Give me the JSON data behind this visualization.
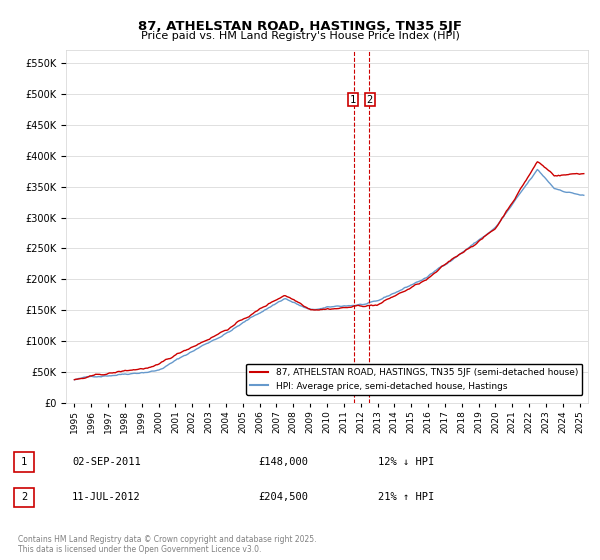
{
  "title1": "87, ATHELSTAN ROAD, HASTINGS, TN35 5JF",
  "title2": "Price paid vs. HM Land Registry's House Price Index (HPI)",
  "legend1": "87, ATHELSTAN ROAD, HASTINGS, TN35 5JF (semi-detached house)",
  "legend2": "HPI: Average price, semi-detached house, Hastings",
  "transaction1_date": "02-SEP-2011",
  "transaction1_price": "£148,000",
  "transaction1_hpi": "12% ↓ HPI",
  "transaction2_date": "11-JUL-2012",
  "transaction2_price": "£204,500",
  "transaction2_hpi": "21% ↑ HPI",
  "footer": "Contains HM Land Registry data © Crown copyright and database right 2025.\nThis data is licensed under the Open Government Licence v3.0.",
  "color_house": "#cc0000",
  "color_hpi": "#6699cc",
  "ylim_min": 0,
  "ylim_max": 570000
}
